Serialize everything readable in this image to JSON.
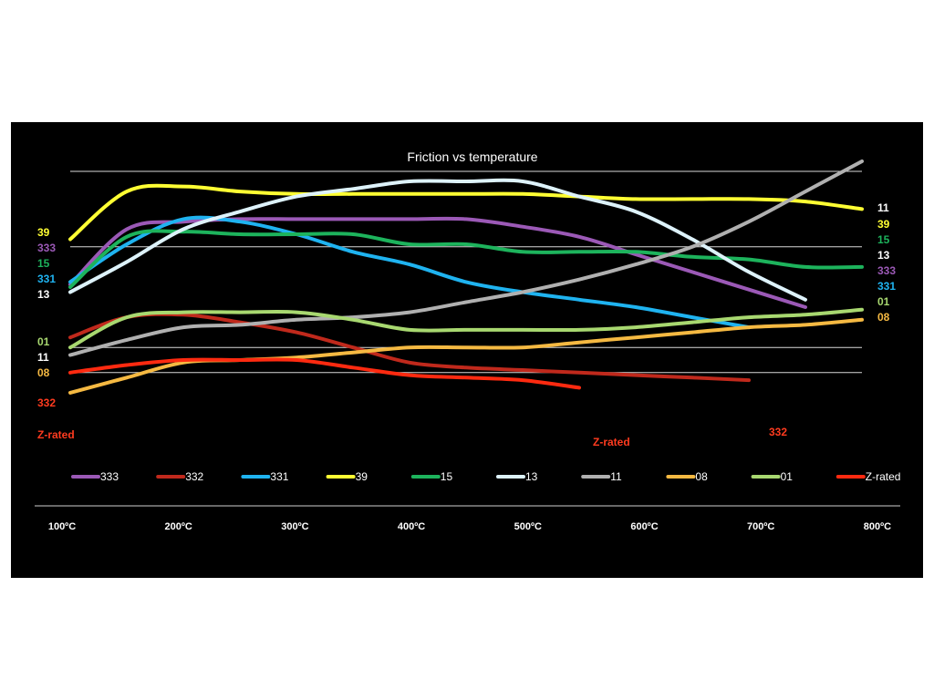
{
  "chart_data": {
    "type": "line",
    "title": "Friction vs temperature",
    "xlabel": "",
    "ylabel": "",
    "x": [
      100,
      150,
      200,
      250,
      300,
      350,
      400,
      450,
      500,
      550,
      600,
      650,
      700,
      750,
      800
    ],
    "x_tick_labels": [
      "100ºC",
      "200ºC",
      "300ºC",
      "400ºC",
      "500ºC",
      "600ºC",
      "700ºC",
      "800ºC"
    ],
    "x_ticks": [
      100,
      200,
      300,
      400,
      500,
      600,
      700,
      800
    ],
    "xlim": [
      100,
      800
    ],
    "ylim": [
      0,
      100
    ],
    "y_gridlines": [
      20,
      30,
      70,
      100
    ],
    "series": [
      {
        "name": "333",
        "color": "#9b59b6",
        "x": [
          100,
          150,
          200,
          250,
          300,
          350,
          400,
          450,
          500,
          550,
          600,
          650,
          700,
          750
        ],
        "values": [
          55,
          77,
          80,
          81,
          81,
          81,
          81,
          81,
          78,
          74,
          67,
          60,
          53,
          46
        ]
      },
      {
        "name": "332",
        "color": "#c0291c",
        "x": [
          100,
          150,
          200,
          250,
          300,
          350,
          400,
          450,
          500,
          550,
          600,
          650,
          700
        ],
        "values": [
          34,
          42,
          43,
          40,
          36,
          30,
          24,
          22,
          21,
          20,
          19,
          18,
          17
        ]
      },
      {
        "name": "331",
        "color": "#1fb3f0",
        "x": [
          100,
          150,
          200,
          250,
          300,
          350,
          400,
          450,
          500,
          550,
          600,
          650,
          700
        ],
        "values": [
          56,
          71,
          81,
          80,
          75,
          68,
          63,
          56,
          52,
          49,
          46,
          42,
          38
        ]
      },
      {
        "name": "39",
        "color": "#ffff33",
        "x": [
          100,
          150,
          200,
          250,
          300,
          350,
          400,
          450,
          500,
          550,
          600,
          650,
          700,
          750,
          800
        ],
        "values": [
          73,
          92,
          94,
          92,
          91,
          91,
          91,
          91,
          91,
          90,
          89,
          89,
          89,
          88,
          85
        ]
      },
      {
        "name": "15",
        "color": "#1db35c",
        "x": [
          100,
          150,
          200,
          250,
          300,
          350,
          400,
          450,
          500,
          550,
          600,
          650,
          700,
          750,
          800
        ],
        "values": [
          54,
          74,
          76,
          75,
          75,
          75,
          71,
          71,
          68,
          68,
          68,
          66,
          65,
          62,
          62
        ]
      },
      {
        "name": "13",
        "color": "#ddf2fa",
        "x": [
          100,
          150,
          200,
          250,
          300,
          350,
          400,
          450,
          500,
          550,
          600,
          650,
          700,
          750
        ],
        "values": [
          52,
          64,
          77,
          84,
          90,
          93,
          96,
          96,
          96,
          90,
          84,
          73,
          60,
          49
        ]
      },
      {
        "name": "11",
        "color": "#b0b0b0",
        "x": [
          100,
          150,
          200,
          250,
          300,
          350,
          400,
          450,
          500,
          550,
          600,
          650,
          700,
          750,
          800
        ],
        "values": [
          27,
          33,
          38,
          39,
          41,
          42,
          44,
          48,
          52,
          57,
          63,
          70,
          80,
          92,
          104
        ]
      },
      {
        "name": "08",
        "color": "#f5b942",
        "x": [
          100,
          150,
          200,
          250,
          300,
          350,
          400,
          450,
          500,
          550,
          600,
          650,
          700,
          750,
          800
        ],
        "values": [
          12,
          18,
          24,
          25,
          26,
          28,
          30,
          30,
          30,
          32,
          34,
          36,
          38,
          39,
          41
        ]
      },
      {
        "name": "01",
        "color": "#a8d870",
        "x": [
          100,
          150,
          200,
          250,
          300,
          350,
          400,
          450,
          500,
          550,
          600,
          650,
          700,
          750,
          800
        ],
        "values": [
          30,
          42,
          44,
          44,
          44,
          41,
          37,
          37,
          37,
          37,
          38,
          40,
          42,
          43,
          45
        ]
      },
      {
        "name": "Z-rated",
        "color": "#ff2a10",
        "x": [
          100,
          150,
          200,
          250,
          300,
          350,
          400,
          450,
          500,
          550
        ],
        "values": [
          20,
          23,
          25,
          25,
          25,
          22,
          19,
          18,
          17,
          14
        ]
      }
    ],
    "legend": [
      "333",
      "332",
      "331",
      "39",
      "15",
      "13",
      "11",
      "08",
      "01",
      "Z-rated"
    ],
    "legend_position": "bottom",
    "left_labels": [
      {
        "text": "39",
        "color": "#ffff33"
      },
      {
        "text": "333",
        "color": "#9b59b6"
      },
      {
        "text": "15",
        "color": "#1db35c"
      },
      {
        "text": "331",
        "color": "#1fb3f0"
      },
      {
        "text": "13",
        "color": "#ffffff"
      },
      {
        "text": "01",
        "color": "#a8d870"
      },
      {
        "text": "11",
        "color": "#ffffff"
      },
      {
        "text": "08",
        "color": "#f5b942"
      },
      {
        "text": "332",
        "color": "#ff3b1f"
      },
      {
        "text": "Z-rated",
        "color": "#ff3b1f"
      }
    ],
    "right_labels": [
      {
        "text": "11",
        "color": "#ffffff"
      },
      {
        "text": "39",
        "color": "#ffff33"
      },
      {
        "text": "15",
        "color": "#1db35c"
      },
      {
        "text": "13",
        "color": "#ffffff"
      },
      {
        "text": "333",
        "color": "#9b59b6"
      },
      {
        "text": "331",
        "color": "#1fb3f0"
      },
      {
        "text": "01",
        "color": "#a8d870"
      },
      {
        "text": "08",
        "color": "#f5b942"
      }
    ],
    "inline_labels": [
      {
        "text": "Z-rated",
        "color": "#ff3b1f"
      },
      {
        "text": "332",
        "color": "#ff3b1f"
      }
    ]
  }
}
